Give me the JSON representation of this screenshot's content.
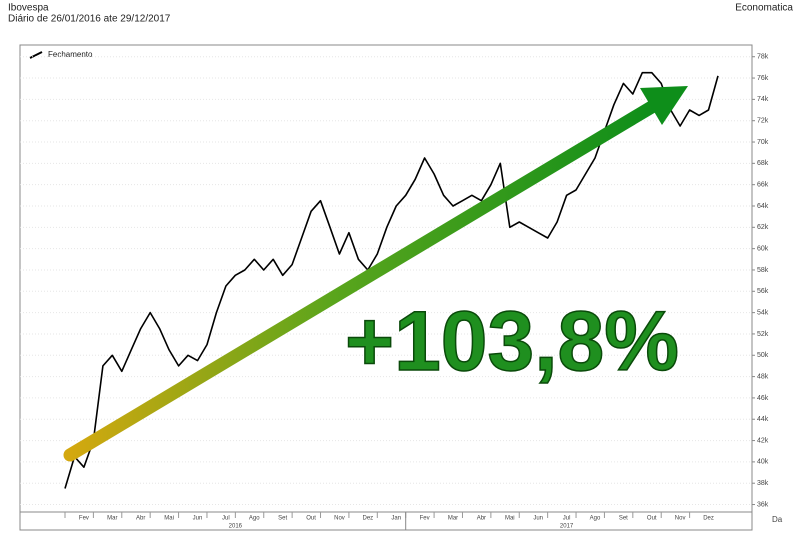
{
  "chart_data": {
    "type": "line",
    "title": "Ibovespa",
    "subtitle": "Diário de 26/01/2016 ate 29/12/2017",
    "source": "Economatica",
    "annotation": "+103,8%",
    "x_label": "Da",
    "years": [
      "2016",
      "2017"
    ],
    "categories": [
      null,
      "Fev",
      null,
      null,
      "Mar",
      null,
      null,
      "Abr",
      null,
      null,
      "Mai",
      null,
      null,
      "Jun",
      null,
      null,
      "Jul",
      null,
      null,
      "Ago",
      null,
      null,
      "Set",
      null,
      null,
      "Out",
      null,
      null,
      "Nov",
      null,
      null,
      "Dez",
      null,
      null,
      "Jan",
      null,
      null,
      "Fev",
      null,
      null,
      "Mar",
      null,
      null,
      "Abr",
      null,
      null,
      "Mai",
      null,
      null,
      "Jun",
      null,
      null,
      "Jul",
      null,
      null,
      "Ago",
      null,
      null,
      "Set",
      null,
      null,
      "Out",
      null,
      null,
      "Nov",
      null,
      null,
      "Dez",
      null,
      null
    ],
    "series": [
      {
        "name": "Fechamento",
        "color": "#000000",
        "values": [
          37500,
          40500,
          39500,
          42000,
          49000,
          50000,
          48500,
          50500,
          52500,
          54000,
          52500,
          50500,
          49000,
          50000,
          49500,
          51000,
          54000,
          56500,
          57500,
          58000,
          59000,
          58000,
          59000,
          57500,
          58500,
          61000,
          63500,
          64500,
          62000,
          59500,
          61500,
          59000,
          58000,
          59500,
          62000,
          64000,
          65000,
          66500,
          68500,
          67000,
          65000,
          64000,
          64500,
          65000,
          64500,
          66000,
          68000,
          62000,
          62500,
          62000,
          61500,
          61000,
          62500,
          65000,
          65500,
          67000,
          68500,
          71000,
          73500,
          75500,
          74500,
          76500,
          76500,
          75500,
          73000,
          71500,
          73000,
          72500,
          73000,
          76200
        ]
      }
    ],
    "ylim": [
      35300,
      79100
    ],
    "yticks": [
      {
        "value": 36000,
        "label": "36k"
      },
      {
        "value": 38000,
        "label": "38k"
      },
      {
        "value": 40000,
        "label": "40k"
      },
      {
        "value": 42000,
        "label": "42k"
      },
      {
        "value": 44000,
        "label": "44k"
      },
      {
        "value": 46000,
        "label": "46k"
      },
      {
        "value": 48000,
        "label": "48k"
      },
      {
        "value": 50000,
        "label": "50k"
      },
      {
        "value": 52000,
        "label": "52k"
      },
      {
        "value": 54000,
        "label": "54k"
      },
      {
        "value": 56000,
        "label": "56k"
      },
      {
        "value": 58000,
        "label": "58k"
      },
      {
        "value": 60000,
        "label": "60k"
      },
      {
        "value": 62000,
        "label": "62k"
      },
      {
        "value": 64000,
        "label": "64k"
      },
      {
        "value": 66000,
        "label": "66k"
      },
      {
        "value": 68000,
        "label": "68k"
      },
      {
        "value": 70000,
        "label": "70k"
      },
      {
        "value": 72000,
        "label": "72k"
      },
      {
        "value": 74000,
        "label": "74k"
      },
      {
        "value": 76000,
        "label": "76k"
      },
      {
        "value": 78000,
        "label": "78k"
      }
    ],
    "grid": true
  }
}
